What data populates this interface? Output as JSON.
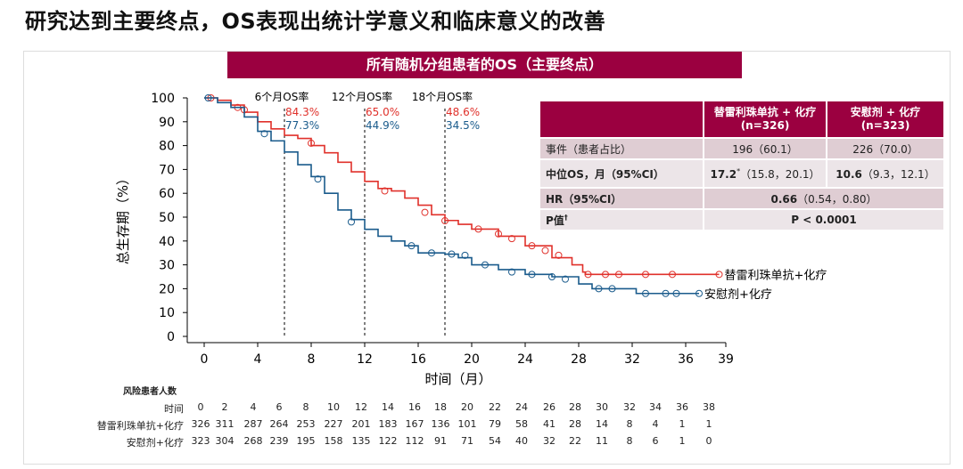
{
  "title": "研究达到主要终点，OS表现出统计学意义和临床意义的改善",
  "banner": "所有随机分组患者的OS（主要终点）",
  "table": {
    "headers": [
      "",
      "替雷利珠单抗 + 化疗\n(n=326)",
      "安慰剂 + 化疗\n(n=323)"
    ],
    "h1a": "替雷利珠单抗 + 化疗",
    "h1b": "(n=326)",
    "h2a": "安慰剂 + 化疗",
    "h2b": "(n=323)",
    "events_label": "事件（患者占比）",
    "events_a": "196（60.1）",
    "events_b": "226（70.0）",
    "median_label": "中位OS，月（95%CI）",
    "median_a_bold": "17.2",
    "median_a_sup": "*",
    "median_a_ci": "（15.8，20.1）",
    "median_b_bold": "10.6",
    "median_b_ci": "（9.3，12.1）",
    "hr_label": "HR（95%CI）",
    "hr_bold": "0.66",
    "hr_ci": "（0.54，0.80）",
    "p_label": "P值",
    "p_sup": "†",
    "p_value": "P < 0.0001"
  },
  "risk": {
    "title": "风险患者人数",
    "time_label": "时间",
    "times": [
      0,
      2,
      4,
      6,
      8,
      10,
      12,
      14,
      16,
      18,
      20,
      22,
      24,
      26,
      28,
      30,
      32,
      34,
      36,
      38
    ],
    "rows": [
      {
        "label": "替雷利珠单抗+化疗",
        "values": [
          326,
          311,
          287,
          264,
          253,
          227,
          201,
          183,
          167,
          136,
          101,
          79,
          58,
          41,
          28,
          14,
          8,
          4,
          1,
          1
        ]
      },
      {
        "label": "安慰剂+化疗",
        "values": [
          323,
          304,
          268,
          239,
          195,
          158,
          135,
          122,
          112,
          91,
          71,
          54,
          40,
          32,
          22,
          11,
          8,
          6,
          1,
          0
        ]
      }
    ]
  },
  "chart_data": {
    "type": "line",
    "xlabel": "时间（月）",
    "ylabel": "总生存期（%）",
    "xlim": [
      -1,
      39
    ],
    "ylim": [
      0,
      100
    ],
    "xticks": [
      0,
      4,
      8,
      12,
      16,
      20,
      24,
      28,
      32,
      36,
      39
    ],
    "yticks": [
      0,
      10,
      20,
      30,
      40,
      50,
      60,
      70,
      80,
      90,
      100
    ],
    "grid": false,
    "landmarks": [
      {
        "label": "6个月OS率",
        "x": 6,
        "a": "84.3%",
        "b": "77.3%"
      },
      {
        "label": "12个月OS率",
        "x": 12,
        "a": "65.0%",
        "b": "44.9%"
      },
      {
        "label": "18个月OS率",
        "x": 18,
        "a": "48.6%",
        "b": "34.5%"
      }
    ],
    "series": [
      {
        "name": "替雷利珠单抗+化疗",
        "color": "#e0312b",
        "points": [
          [
            0,
            100
          ],
          [
            1,
            99
          ],
          [
            2,
            97
          ],
          [
            3,
            94
          ],
          [
            4,
            90
          ],
          [
            5,
            87
          ],
          [
            6,
            84.3
          ],
          [
            7,
            83
          ],
          [
            8,
            80
          ],
          [
            9,
            77
          ],
          [
            10,
            73
          ],
          [
            11,
            69
          ],
          [
            12,
            65
          ],
          [
            13,
            62
          ],
          [
            14,
            61
          ],
          [
            15,
            58
          ],
          [
            16,
            55
          ],
          [
            17,
            51
          ],
          [
            18,
            48.6
          ],
          [
            19,
            47
          ],
          [
            20,
            45
          ],
          [
            22,
            42
          ],
          [
            24,
            38
          ],
          [
            26,
            33
          ],
          [
            27.5,
            30
          ],
          [
            28.3,
            27
          ],
          [
            28.5,
            26
          ],
          [
            38.5,
            26
          ]
        ],
        "censored": [
          [
            0.5,
            100
          ],
          [
            2.5,
            96
          ],
          [
            3,
            95
          ],
          [
            8,
            81
          ],
          [
            13.5,
            61
          ],
          [
            16.5,
            52
          ],
          [
            18,
            48.5
          ],
          [
            20.5,
            45
          ],
          [
            22,
            43
          ],
          [
            23,
            41
          ],
          [
            24.5,
            38
          ],
          [
            25.5,
            36
          ],
          [
            26.5,
            34
          ],
          [
            28.7,
            26
          ],
          [
            30,
            26
          ],
          [
            31,
            26
          ],
          [
            33,
            26
          ],
          [
            35,
            26
          ],
          [
            38.5,
            26
          ]
        ]
      },
      {
        "name": "安慰剂+化疗",
        "color": "#1a5b8c",
        "points": [
          [
            0,
            100
          ],
          [
            1,
            98
          ],
          [
            2,
            96
          ],
          [
            3,
            92
          ],
          [
            4,
            86
          ],
          [
            5,
            82
          ],
          [
            6,
            77.3
          ],
          [
            7,
            72
          ],
          [
            8,
            67
          ],
          [
            9,
            60
          ],
          [
            10,
            53
          ],
          [
            11,
            49
          ],
          [
            12,
            44.9
          ],
          [
            13,
            42
          ],
          [
            14,
            40
          ],
          [
            15,
            38
          ],
          [
            16,
            35
          ],
          [
            18,
            34.5
          ],
          [
            19,
            33
          ],
          [
            20,
            30
          ],
          [
            22,
            28
          ],
          [
            24,
            26
          ],
          [
            26,
            25
          ],
          [
            28,
            22
          ],
          [
            29,
            20
          ],
          [
            32.3,
            20
          ],
          [
            32.3,
            18
          ],
          [
            37,
            18
          ]
        ],
        "censored": [
          [
            0.3,
            100
          ],
          [
            4.5,
            85
          ],
          [
            8.5,
            66
          ],
          [
            11,
            48
          ],
          [
            15.5,
            38
          ],
          [
            17,
            35
          ],
          [
            18.5,
            34.5
          ],
          [
            19.5,
            34
          ],
          [
            21,
            30
          ],
          [
            23,
            27
          ],
          [
            24.5,
            26
          ],
          [
            26,
            25
          ],
          [
            27,
            24
          ],
          [
            29.5,
            20
          ],
          [
            30.5,
            20
          ],
          [
            33,
            18
          ],
          [
            34.5,
            18
          ],
          [
            35.3,
            18
          ],
          [
            37,
            18
          ]
        ]
      }
    ]
  }
}
